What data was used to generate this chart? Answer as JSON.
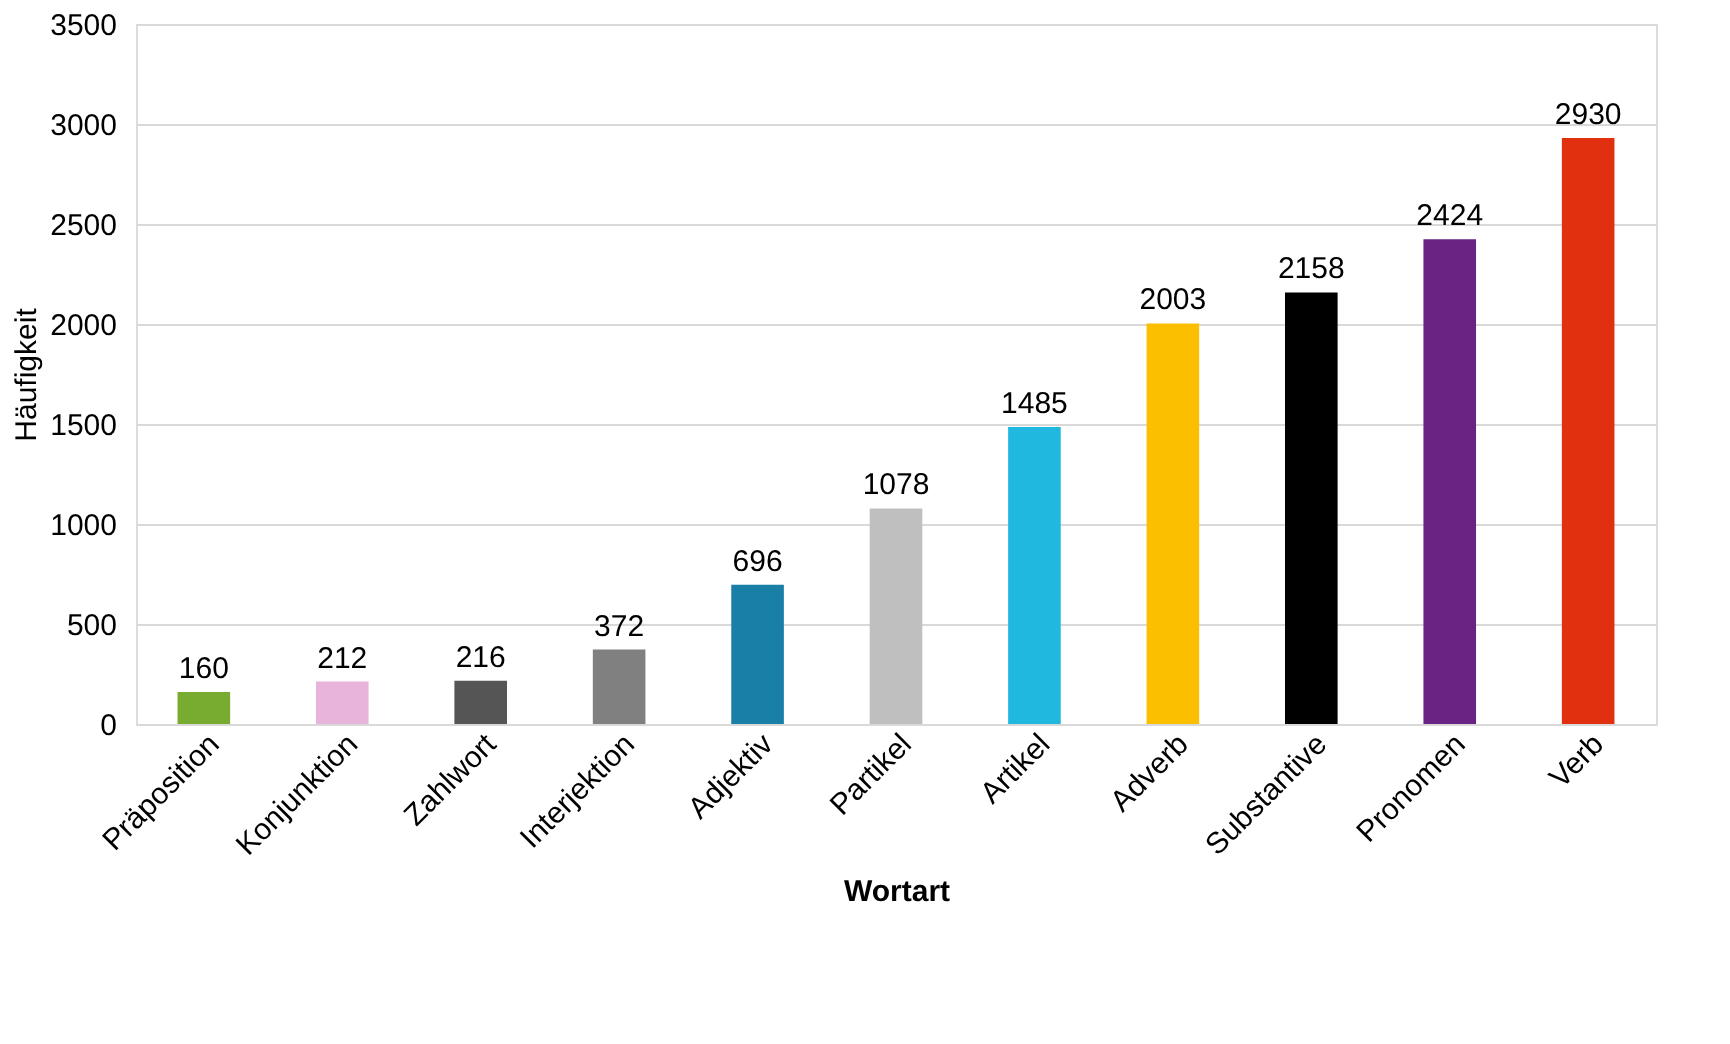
{
  "chart_data": {
    "type": "bar",
    "categories": [
      "Präposition",
      "Konjunktion",
      "Zahlwort",
      "Interjektion",
      "Adjektiv",
      "Partikel",
      "Artikel",
      "Adverb",
      "Substantive",
      "Pronomen",
      "Verb"
    ],
    "values": [
      160,
      212,
      216,
      372,
      696,
      1078,
      1485,
      2003,
      2158,
      2424,
      2930
    ],
    "colors": [
      "#77ac30",
      "#e8b4dc",
      "#555555",
      "#808080",
      "#1a7fa6",
      "#bfbfbf",
      "#21b8e0",
      "#fcbf00",
      "#000000",
      "#6a2383",
      "#e0300f"
    ],
    "xlabel": "Wortart",
    "ylabel": "Häufigkeit",
    "ylim": [
      0,
      3500
    ],
    "yticks": [
      0,
      500,
      1000,
      1500,
      2000,
      2500,
      3000,
      3500
    ],
    "grid": "y",
    "data_labels": true
  }
}
